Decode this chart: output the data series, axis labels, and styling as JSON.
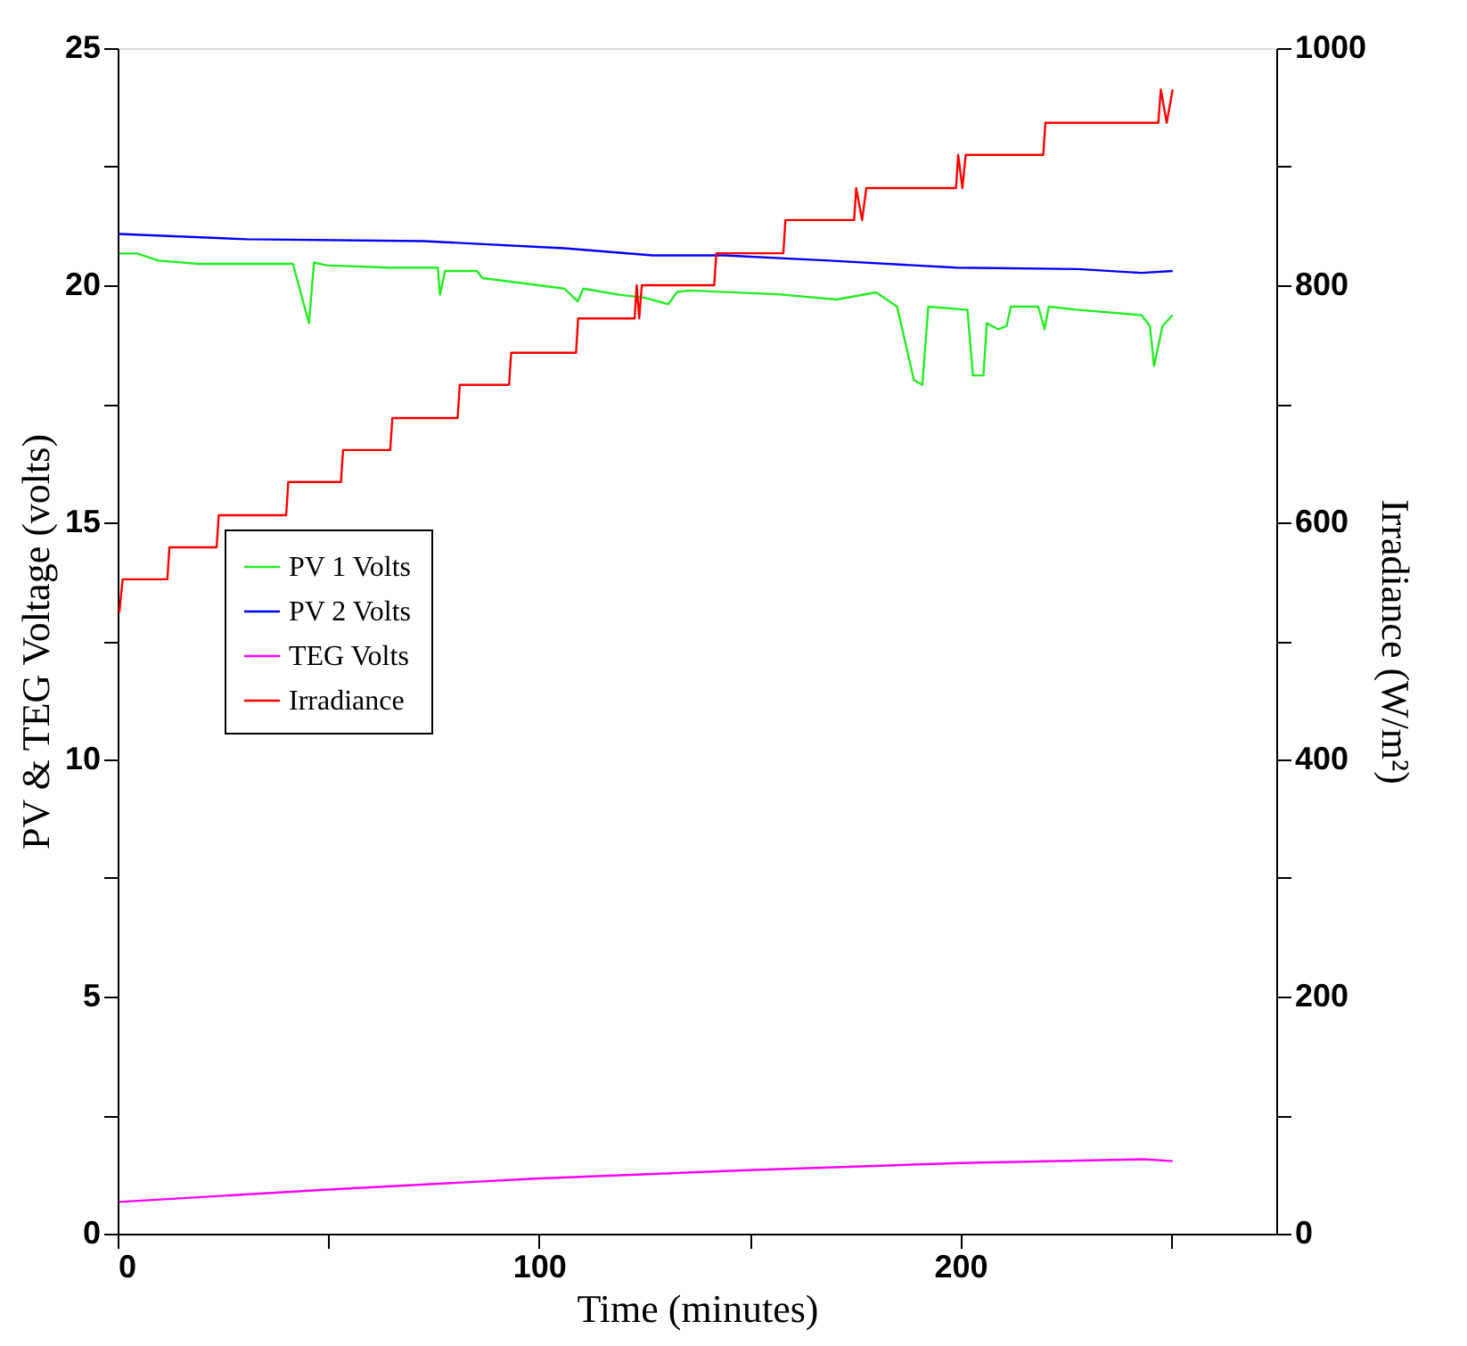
{
  "chart_data": {
    "type": "line",
    "xlabel": "Time (minutes)",
    "ylabel": "PV & TEG Voltage (volts)",
    "y2label": "Irradiance (W/m²)",
    "xlim": [
      0,
      275
    ],
    "xticks": [
      0,
      {
        "value": 50,
        "label": null
      },
      100,
      {
        "value": 150,
        "label": null
      },
      200,
      {
        "value": 250,
        "label": null
      }
    ],
    "ylim": [
      0,
      25
    ],
    "yticks": [
      0,
      {
        "value": 2.5,
        "label": null
      },
      5,
      {
        "value": 7.5,
        "label": null
      },
      10,
      {
        "value": 12.5,
        "label": null
      },
      15,
      {
        "value": 17.5,
        "label": null
      },
      20,
      {
        "value": 22.5,
        "label": null
      },
      25
    ],
    "y2lim": [
      0,
      1000
    ],
    "y2ticks": [
      0,
      {
        "value": 100,
        "label": null
      },
      200,
      {
        "value": 300,
        "label": null
      },
      400,
      {
        "value": 500,
        "label": null
      },
      600,
      {
        "value": 700,
        "label": null
      },
      800,
      {
        "value": 900,
        "label": null
      },
      1000
    ],
    "grid": false,
    "legend": "left",
    "line_style": "solid",
    "marker": "none",
    "series": [
      {
        "name": "PV 1 Volts",
        "color": "#22ee22",
        "x": [
          0.4,
          4.6,
          9.7,
          19.3,
          37,
          41.6,
          45.4,
          46.6,
          49.6,
          64.3,
          76,
          76.5,
          77.7,
          85.3,
          86.6,
          93.7,
          106,
          109.2,
          110.5,
          119,
          125,
          130.7,
          132.8,
          135.7,
          156.7,
          170.6,
          180,
          185,
          189,
          191,
          192.4,
          201.7,
          203,
          205.5,
          206.3,
          209,
          211,
          212,
          218.5,
          220,
          221,
          228,
          243,
          245,
          246,
          248,
          250.4
        ],
        "values": [
          20.67,
          20.67,
          20.52,
          20.45,
          20.45,
          20.45,
          19.2,
          20.48,
          20.42,
          20.37,
          20.37,
          19.8,
          20.3,
          20.3,
          20.15,
          20.07,
          19.93,
          19.66,
          19.93,
          19.8,
          19.74,
          19.6,
          19.86,
          19.89,
          19.81,
          19.7,
          19.85,
          19.55,
          18.0,
          17.9,
          19.55,
          19.48,
          18.1,
          18.1,
          19.2,
          19.07,
          19.14,
          19.55,
          19.55,
          19.07,
          19.55,
          19.48,
          19.37,
          19.14,
          18.3,
          19.14,
          19.37
        ]
      },
      {
        "name": "PV 2 Volts",
        "color": "#0000ff",
        "x": [
          0.4,
          30.7,
          72.7,
          106,
          127,
          144,
          169,
          199,
          228,
          243,
          250.4
        ],
        "values": [
          21.08,
          20.97,
          20.93,
          20.78,
          20.63,
          20.63,
          20.52,
          20.37,
          20.34,
          20.26,
          20.3
        ]
      },
      {
        "name": "TEG Volts",
        "color": "#ff00ff",
        "x": [
          0.4,
          50,
          99,
          149.6,
          200,
          243.7,
          250.4
        ],
        "values": [
          0.67,
          0.93,
          1.16,
          1.34,
          1.49,
          1.57,
          1.53
        ]
      },
      {
        "name": "Irradiance",
        "color": "#ff0000",
        "axis": "y2",
        "x": [
          0.4,
          1.2,
          11.8,
          12.3,
          23.5,
          24,
          40,
          40.5,
          53,
          53.5,
          64.7,
          65.2,
          80.7,
          81.2,
          92.9,
          93.4,
          108.8,
          109.3,
          122.7,
          123.2,
          123.8,
          124.4,
          141.6,
          142.1,
          158,
          158.5,
          174.8,
          175.3,
          176.7,
          177.7,
          199,
          199.5,
          200.5,
          201.3,
          219.7,
          220.2,
          247,
          247.6,
          249,
          250.4
        ],
        "values": [
          524,
          552,
          552,
          579,
          579,
          606,
          606,
          634,
          634,
          661,
          661,
          688,
          688,
          716,
          716,
          743,
          743,
          772,
          772,
          800,
          772,
          800,
          800,
          827,
          827,
          855,
          855,
          882,
          855,
          882,
          882,
          910,
          882,
          910,
          910,
          937,
          937,
          965,
          937,
          965
        ]
      }
    ]
  }
}
